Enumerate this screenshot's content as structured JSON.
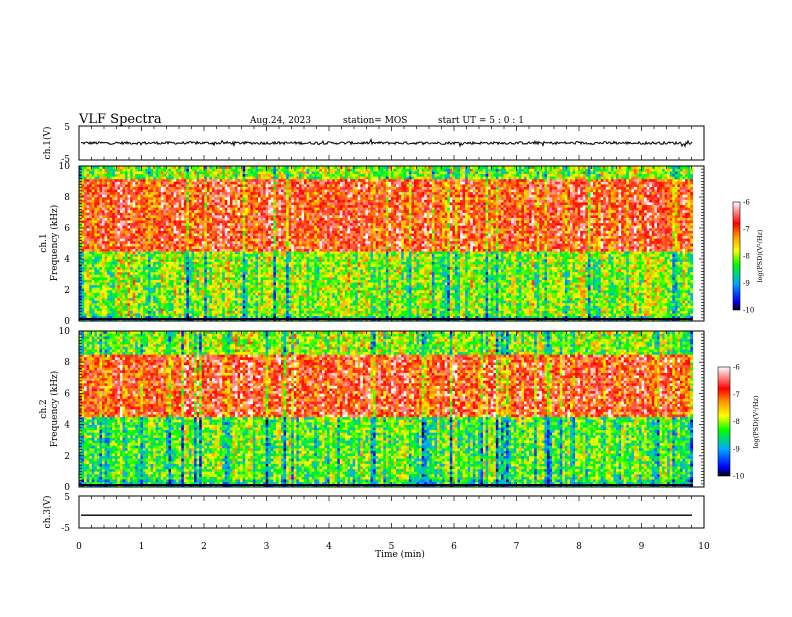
{
  "header": {
    "title": "VLF Spectra",
    "date": "Aug.24, 2023",
    "station": "station= MOS",
    "start": "start UT =  5 : 0 : 1"
  },
  "chart_data": [
    {
      "type": "line",
      "name": "ch1-waveform",
      "ylabel": "ch.1(V)",
      "xlim": [
        0,
        10
      ],
      "ylim": [
        -5,
        5
      ],
      "y_tick_labels": [
        "5",
        "-5"
      ],
      "approx_level": 0
    },
    {
      "type": "heatmap",
      "name": "ch1-spectrogram",
      "ylabel_top": "ch.1",
      "ylabel": "Frequency (kHz)",
      "xlim": [
        0,
        10
      ],
      "ylim": [
        0,
        10
      ],
      "data_end_min": 9.82,
      "y_tick_labels": [
        "0",
        "2",
        "4",
        "6",
        "8",
        "10"
      ],
      "dominant_psd": [
        {
          "freq_kHz": [
            0,
            0.4
          ],
          "log_psd": -8.5
        },
        {
          "freq_kHz": [
            0.4,
            4.5
          ],
          "log_psd": -8.0
        },
        {
          "freq_kHz": [
            4.5,
            9.2
          ],
          "log_psd": -6.8
        },
        {
          "freq_kHz": [
            9.2,
            10
          ],
          "log_psd": -8.0
        }
      ]
    },
    {
      "type": "heatmap",
      "name": "ch2-spectrogram",
      "ylabel_top": "ch.2",
      "ylabel": "Frequency (kHz)",
      "xlim": [
        0,
        10
      ],
      "ylim": [
        0,
        10
      ],
      "data_end_min": 9.82,
      "y_tick_labels": [
        "0",
        "2",
        "4",
        "6",
        "8",
        "10"
      ],
      "dominant_psd": [
        {
          "freq_kHz": [
            0,
            0.5
          ],
          "log_psd": -8.5
        },
        {
          "freq_kHz": [
            0.5,
            4.5
          ],
          "log_psd": -8.2
        },
        {
          "freq_kHz": [
            4.5,
            8.5
          ],
          "log_psd": -6.8
        },
        {
          "freq_kHz": [
            8.5,
            10
          ],
          "log_psd": -8.0
        }
      ]
    },
    {
      "type": "line",
      "name": "ch3-waveform",
      "ylabel": "ch.3(V)",
      "xlim": [
        0,
        10
      ],
      "ylim": [
        -5,
        5
      ],
      "y_tick_labels": [
        "5",
        "-5"
      ],
      "approx_level": -1
    }
  ],
  "x_axis": {
    "label": "Time  (min)",
    "ticks": [
      "0",
      "1",
      "2",
      "3",
      "4",
      "5",
      "6",
      "7",
      "8",
      "9",
      "10"
    ]
  },
  "colorbar": {
    "label": "log(PSD)(V²/Hz)",
    "ticks": [
      "-6",
      "-7",
      "-8",
      "-9",
      "-10"
    ],
    "range": [
      -10,
      -6
    ],
    "colors": [
      "#000000",
      "#0000ff",
      "#00aaff",
      "#00ff00",
      "#ffff00",
      "#ff9900",
      "#ff0000",
      "#ffffff"
    ]
  }
}
